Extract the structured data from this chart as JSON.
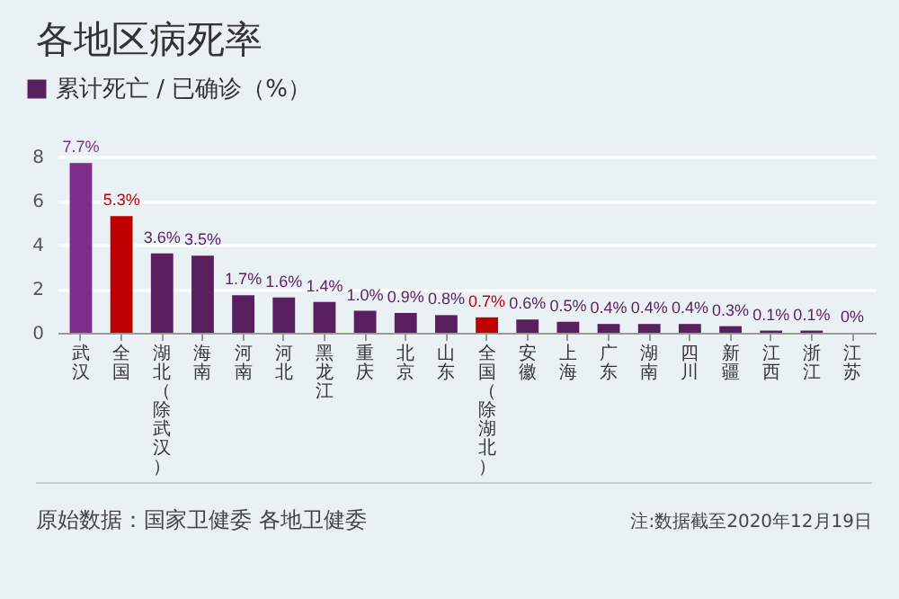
{
  "chart_data": {
    "type": "bar",
    "title": "各地区病死率",
    "categories": [
      "武汉",
      "全国",
      "湖北（除武汉）",
      "海南",
      "河南",
      "河北",
      "黑龙江",
      "重庆",
      "北京",
      "山东",
      "全国（除湖北）",
      "安徽",
      "上海",
      "广东",
      "湖南",
      "四川",
      "新疆",
      "江西",
      "浙江",
      "江苏"
    ],
    "series": [
      {
        "name": "累计死亡 / 已确诊（%）",
        "color": "#5a1f5f",
        "values": [
          7.7,
          5.3,
          3.6,
          3.5,
          1.7,
          1.6,
          1.4,
          1.0,
          0.9,
          0.8,
          0.7,
          0.6,
          0.5,
          0.4,
          0.4,
          0.4,
          0.3,
          0.1,
          0.1,
          0
        ],
        "colors": [
          "#7e2d8c",
          "#c00000",
          "#5a1f5f",
          "#5a1f5f",
          "#5a1f5f",
          "#5a1f5f",
          "#5a1f5f",
          "#5a1f5f",
          "#5a1f5f",
          "#5a1f5f",
          "#c00000",
          "#5a1f5f",
          "#5a1f5f",
          "#5a1f5f",
          "#5a1f5f",
          "#5a1f5f",
          "#5a1f5f",
          "#5a1f5f",
          "#5a1f5f",
          "#5a1f5f"
        ],
        "value_labels": [
          "7.7%",
          "5.3%",
          "3.6%",
          "3.5%",
          "1.7%",
          "1.6%",
          "1.4%",
          "1.0%",
          "0.9%",
          "0.8%",
          "0.7%",
          "0.6%",
          "0.5%",
          "0.4%",
          "0.4%",
          "0.4%",
          "0.3%",
          "0.1%",
          "0.1%",
          "0%"
        ]
      }
    ],
    "ylim": [
      0,
      8
    ],
    "yticks": [
      0,
      2,
      4,
      6,
      8
    ],
    "grid": "y",
    "legend": "top left",
    "annotations": [
      "原始数据：国家卫健委 各地卫健委",
      "注:数据截至2020年12月19日"
    ]
  }
}
